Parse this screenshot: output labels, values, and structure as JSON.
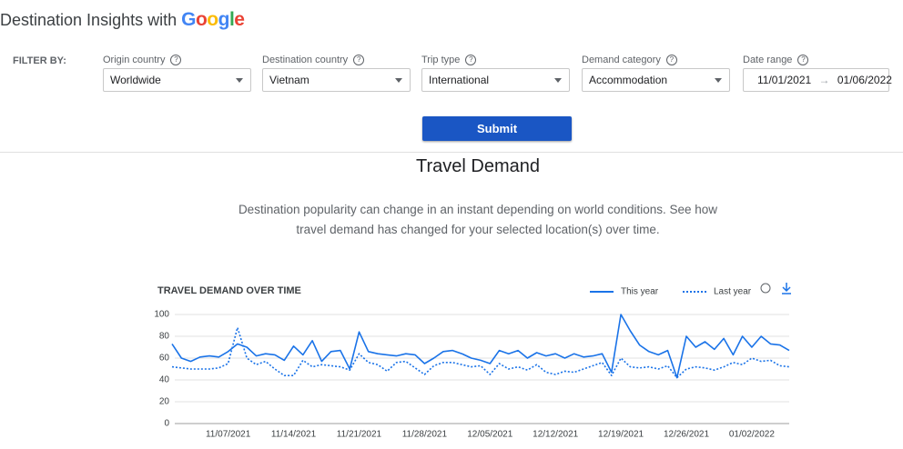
{
  "header": {
    "title": "Destination Insights with",
    "logo": "Google"
  },
  "filters": {
    "label": "FILTER BY:",
    "fields": [
      {
        "label": "Origin country",
        "value": "Worldwide"
      },
      {
        "label": "Destination country",
        "value": "Vietnam"
      },
      {
        "label": "Trip type",
        "value": "International"
      },
      {
        "label": "Demand category",
        "value": "Accommodation"
      }
    ],
    "date_range": {
      "label": "Date range",
      "start": "11/01/2021",
      "end": "01/06/2022"
    }
  },
  "submit": "Submit",
  "section": {
    "title": "Travel Demand",
    "description": [
      "Destination popularity can change in an instant depending on world conditions. See how",
      "travel demand has changed for your selected location(s) over time."
    ]
  },
  "chart_data": {
    "type": "line",
    "title": "TRAVEL DEMAND OVER TIME",
    "x": [
      "11/01/2021",
      "11/02/2021",
      "11/03/2021",
      "11/04/2021",
      "11/05/2021",
      "11/06/2021",
      "11/07/2021",
      "11/08/2021",
      "11/09/2021",
      "11/10/2021",
      "11/11/2021",
      "11/12/2021",
      "11/13/2021",
      "11/14/2021",
      "11/15/2021",
      "11/16/2021",
      "11/17/2021",
      "11/18/2021",
      "11/19/2021",
      "11/20/2021",
      "11/21/2021",
      "11/22/2021",
      "11/23/2021",
      "11/24/2021",
      "11/25/2021",
      "11/26/2021",
      "11/27/2021",
      "11/28/2021",
      "11/29/2021",
      "11/30/2021",
      "12/01/2021",
      "12/02/2021",
      "12/03/2021",
      "12/04/2021",
      "12/05/2021",
      "12/06/2021",
      "12/07/2021",
      "12/08/2021",
      "12/09/2021",
      "12/10/2021",
      "12/11/2021",
      "12/12/2021",
      "12/13/2021",
      "12/14/2021",
      "12/15/2021",
      "12/16/2021",
      "12/17/2021",
      "12/18/2021",
      "12/19/2021",
      "12/20/2021",
      "12/21/2021",
      "12/22/2021",
      "12/23/2021",
      "12/24/2021",
      "12/25/2021",
      "12/26/2021",
      "12/27/2021",
      "12/28/2021",
      "12/29/2021",
      "12/30/2021",
      "12/31/2021",
      "01/01/2022",
      "01/02/2022",
      "01/03/2022",
      "01/04/2022",
      "01/05/2022",
      "01/06/2022"
    ],
    "series": [
      {
        "name": "This year",
        "color": "#1a73e8",
        "line_style": "solid",
        "values": [
          73,
          60,
          57,
          61,
          62,
          61,
          66,
          73,
          70,
          62,
          64,
          63,
          58,
          71,
          63,
          76,
          57,
          66,
          67,
          50,
          84,
          66,
          64,
          63,
          62,
          64,
          63,
          55,
          60,
          66,
          67,
          64,
          60,
          58,
          55,
          67,
          64,
          67,
          60,
          65,
          62,
          64,
          60,
          64,
          61,
          62,
          64,
          47,
          100,
          85,
          72,
          66,
          63,
          67,
          42,
          80,
          70,
          75,
          68,
          78,
          63,
          80,
          70,
          80,
          73,
          72,
          67
        ]
      },
      {
        "name": "Last year",
        "color": "#1a73e8",
        "line_style": "dotted",
        "values": [
          52,
          51,
          50,
          50,
          50,
          51,
          55,
          88,
          60,
          54,
          57,
          50,
          44,
          44,
          58,
          52,
          54,
          53,
          52,
          49,
          64,
          56,
          54,
          48,
          56,
          57,
          51,
          45,
          53,
          56,
          56,
          54,
          52,
          53,
          45,
          55,
          50,
          52,
          49,
          54,
          47,
          45,
          48,
          47,
          50,
          53,
          56,
          44,
          60,
          52,
          51,
          52,
          50,
          53,
          42,
          50,
          52,
          51,
          49,
          52,
          56,
          54,
          60,
          57,
          58,
          53,
          52
        ]
      }
    ],
    "ylim": [
      0,
      100
    ],
    "yticks": [
      0,
      20,
      40,
      60,
      80,
      100
    ],
    "xticks": [
      "11/07/2021",
      "11/14/2021",
      "11/21/2021",
      "11/28/2021",
      "12/05/2021",
      "12/12/2021",
      "12/19/2021",
      "12/26/2021",
      "01/02/2022"
    ],
    "grid": true
  }
}
